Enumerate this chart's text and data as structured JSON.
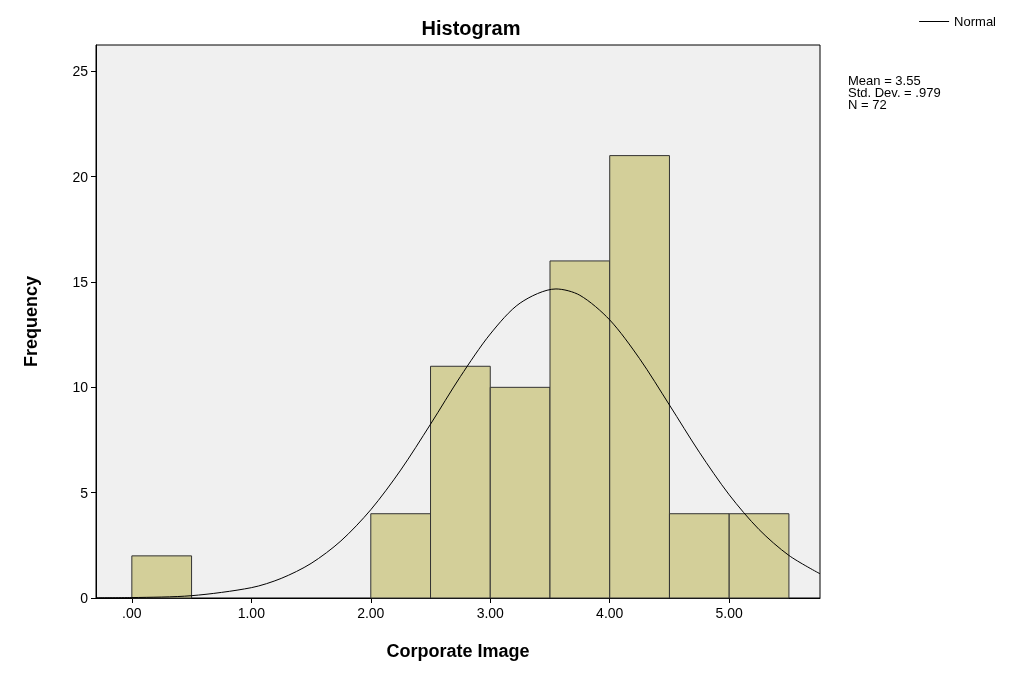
{
  "chart_data": {
    "type": "histogram",
    "title": "Histogram",
    "xlabel": "Corporate Image",
    "ylabel": "Frequency",
    "bins": [
      0,
      0.5,
      1,
      1.5,
      2,
      2.5,
      3,
      3.5,
      4,
      4.5,
      5,
      5.5
    ],
    "values": [
      2,
      0,
      0,
      0,
      4,
      11,
      10,
      16,
      21,
      4,
      4
    ],
    "color": "#d3cf99",
    "series": [
      {
        "name": "Normal",
        "type": "line",
        "color": "#000000",
        "x": [
          -0.3,
          0,
          0.5,
          1,
          1.25,
          1.5,
          1.75,
          2,
          2.25,
          2.5,
          2.75,
          3,
          3.25,
          3.55,
          3.75,
          4,
          4.25,
          4.5,
          4.75,
          5,
          5.25,
          5.5,
          5.76
        ],
        "values": [
          0.01,
          0.02,
          0.11,
          0.49,
          0.93,
          1.64,
          2.71,
          4.19,
          6.07,
          8.25,
          10.51,
          12.53,
          14.0,
          14.67,
          14.37,
          13.2,
          11.36,
          9.16,
          6.92,
          4.9,
          3.25,
          2.02,
          1.15
        ]
      }
    ],
    "xlim": [
      -0.3,
      5.76
    ],
    "xticks": [
      {
        "value": 0,
        "label": ".00"
      },
      {
        "value": 1,
        "label": "1.00"
      },
      {
        "value": 2,
        "label": "2.00"
      },
      {
        "value": 3,
        "label": "3.00"
      },
      {
        "value": 4,
        "label": "4.00"
      },
      {
        "value": 5,
        "label": "5.00"
      }
    ],
    "ylim": [
      0,
      26.25
    ],
    "yticks": [
      0,
      5,
      10,
      15,
      20,
      25
    ],
    "grid": false,
    "legend": "top right",
    "marker": "none",
    "line_style": "solid",
    "annotations": [
      "Mean = 3.55",
      "Std. Dev. = .979",
      "N = 72"
    ]
  }
}
